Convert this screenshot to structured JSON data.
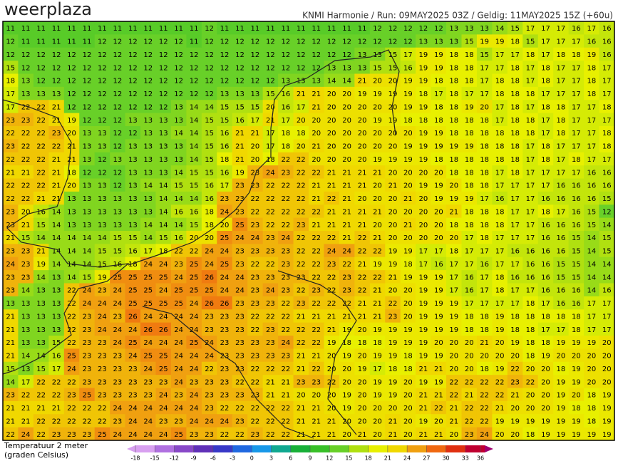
{
  "header": {
    "logo": "weerplaza",
    "info": "KNMI Harmonie / Run: 09MAY2025 03Z / Geldig: 11MAY2025 15Z (+60u)"
  },
  "map": {
    "values": [
      [
        11,
        11,
        11,
        11,
        11,
        11,
        11,
        11,
        11,
        11,
        11,
        11,
        11,
        12,
        11,
        11,
        11,
        11,
        11,
        11,
        11,
        11,
        11,
        11,
        12,
        12,
        12,
        12,
        12,
        13,
        13,
        13,
        14,
        15,
        17,
        17,
        17,
        16,
        17,
        16
      ],
      [
        12,
        11,
        11,
        11,
        11,
        11,
        12,
        12,
        12,
        12,
        12,
        12,
        11,
        12,
        12,
        12,
        12,
        12,
        12,
        12,
        12,
        12,
        12,
        12,
        12,
        12,
        12,
        13,
        13,
        13,
        15,
        19,
        19,
        18,
        15,
        17,
        17,
        17,
        16,
        16
      ],
      [
        12,
        12,
        12,
        12,
        12,
        12,
        12,
        12,
        12,
        12,
        12,
        12,
        12,
        12,
        12,
        12,
        12,
        12,
        12,
        12,
        12,
        12,
        12,
        13,
        13,
        15,
        17,
        19,
        19,
        18,
        18,
        15,
        17,
        17,
        18,
        17,
        18,
        18,
        19,
        16
      ],
      [
        15,
        12,
        12,
        12,
        12,
        12,
        12,
        12,
        12,
        12,
        12,
        12,
        12,
        12,
        12,
        12,
        12,
        12,
        12,
        12,
        12,
        13,
        13,
        13,
        15,
        15,
        16,
        19,
        19,
        18,
        18,
        17,
        17,
        18,
        17,
        18,
        17,
        17,
        18,
        17
      ],
      [
        18,
        13,
        12,
        12,
        12,
        12,
        12,
        12,
        12,
        12,
        12,
        12,
        12,
        12,
        12,
        12,
        12,
        12,
        13,
        13,
        13,
        14,
        14,
        21,
        20,
        20,
        19,
        19,
        18,
        18,
        18,
        17,
        18,
        18,
        17,
        18,
        17,
        17,
        18,
        17
      ],
      [
        17,
        13,
        13,
        13,
        12,
        12,
        12,
        12,
        12,
        12,
        12,
        12,
        12,
        12,
        13,
        13,
        13,
        15,
        16,
        21,
        21,
        20,
        20,
        19,
        19,
        19,
        19,
        18,
        17,
        18,
        17,
        17,
        18,
        18,
        18,
        17,
        17,
        17,
        18,
        17
      ],
      [
        17,
        22,
        22,
        21,
        12,
        12,
        12,
        12,
        12,
        12,
        12,
        13,
        14,
        14,
        15,
        15,
        15,
        20,
        16,
        17,
        21,
        20,
        20,
        20,
        20,
        20,
        19,
        19,
        18,
        18,
        19,
        20,
        17,
        18,
        17,
        18,
        18,
        17,
        17,
        18
      ],
      [
        23,
        23,
        22,
        21,
        19,
        12,
        12,
        12,
        13,
        13,
        13,
        13,
        14,
        15,
        15,
        16,
        17,
        21,
        17,
        20,
        20,
        20,
        20,
        20,
        19,
        19,
        18,
        18,
        18,
        18,
        18,
        18,
        17,
        18,
        18,
        17,
        18,
        17,
        17,
        17
      ],
      [
        22,
        22,
        22,
        23,
        20,
        13,
        13,
        12,
        12,
        13,
        13,
        14,
        14,
        15,
        16,
        21,
        21,
        17,
        18,
        18,
        20,
        20,
        20,
        20,
        20,
        20,
        20,
        19,
        19,
        18,
        18,
        18,
        18,
        18,
        18,
        17,
        18,
        17,
        17,
        18
      ],
      [
        23,
        22,
        22,
        22,
        21,
        13,
        13,
        12,
        13,
        13,
        13,
        13,
        14,
        15,
        16,
        21,
        20,
        17,
        18,
        20,
        21,
        20,
        20,
        20,
        20,
        20,
        19,
        19,
        19,
        19,
        19,
        18,
        18,
        18,
        17,
        18,
        17,
        17,
        17,
        18
      ],
      [
        22,
        22,
        22,
        21,
        21,
        13,
        12,
        13,
        13,
        13,
        13,
        13,
        14,
        15,
        18,
        21,
        20,
        18,
        22,
        22,
        20,
        20,
        20,
        20,
        19,
        19,
        19,
        19,
        18,
        18,
        18,
        18,
        18,
        18,
        17,
        18,
        17,
        18,
        17,
        17
      ],
      [
        21,
        21,
        22,
        21,
        18,
        12,
        12,
        12,
        13,
        13,
        13,
        14,
        15,
        15,
        16,
        19,
        23,
        24,
        23,
        22,
        22,
        21,
        21,
        21,
        21,
        20,
        20,
        20,
        20,
        18,
        18,
        18,
        17,
        18,
        17,
        17,
        17,
        17,
        16,
        16
      ],
      [
        22,
        22,
        22,
        21,
        20,
        13,
        13,
        12,
        13,
        14,
        14,
        15,
        15,
        16,
        17,
        23,
        23,
        22,
        22,
        22,
        21,
        21,
        21,
        21,
        20,
        21,
        20,
        19,
        19,
        20,
        18,
        18,
        17,
        17,
        17,
        17,
        16,
        16,
        16,
        16
      ],
      [
        22,
        22,
        21,
        21,
        13,
        13,
        13,
        13,
        13,
        13,
        14,
        14,
        14,
        16,
        23,
        23,
        22,
        22,
        22,
        22,
        21,
        22,
        21,
        20,
        20,
        20,
        21,
        20,
        19,
        19,
        19,
        17,
        16,
        17,
        17,
        16,
        16,
        16,
        16,
        15
      ],
      [
        23,
        20,
        16,
        14,
        13,
        13,
        13,
        13,
        13,
        13,
        14,
        16,
        16,
        18,
        24,
        23,
        22,
        22,
        22,
        22,
        22,
        21,
        21,
        21,
        21,
        20,
        20,
        20,
        20,
        21,
        18,
        18,
        18,
        17,
        17,
        18,
        17,
        16,
        15,
        12
      ],
      [
        23,
        21,
        15,
        14,
        13,
        13,
        13,
        13,
        13,
        14,
        14,
        14,
        15,
        18,
        20,
        25,
        23,
        22,
        22,
        23,
        21,
        21,
        21,
        21,
        20,
        20,
        21,
        20,
        20,
        18,
        18,
        18,
        18,
        17,
        17,
        16,
        16,
        16,
        15,
        14
      ],
      [
        21,
        15,
        14,
        14,
        14,
        14,
        14,
        15,
        15,
        14,
        15,
        16,
        20,
        20,
        25,
        24,
        24,
        23,
        24,
        22,
        22,
        22,
        21,
        22,
        21,
        20,
        20,
        20,
        20,
        20,
        17,
        18,
        17,
        17,
        17,
        16,
        16,
        15,
        14,
        15
      ],
      [
        23,
        23,
        21,
        14,
        14,
        14,
        15,
        15,
        16,
        17,
        18,
        22,
        22,
        24,
        24,
        23,
        23,
        23,
        23,
        22,
        22,
        24,
        24,
        22,
        22,
        19,
        19,
        17,
        17,
        18,
        17,
        17,
        17,
        16,
        16,
        16,
        16,
        15,
        14,
        15
      ],
      [
        24,
        23,
        19,
        14,
        14,
        14,
        15,
        16,
        18,
        24,
        24,
        23,
        25,
        24,
        25,
        23,
        22,
        22,
        23,
        22,
        22,
        23,
        22,
        21,
        19,
        19,
        18,
        17,
        16,
        17,
        17,
        16,
        17,
        17,
        16,
        16,
        15,
        15,
        14,
        14
      ],
      [
        23,
        23,
        14,
        13,
        14,
        15,
        19,
        25,
        25,
        25,
        25,
        24,
        25,
        26,
        24,
        24,
        23,
        23,
        23,
        23,
        22,
        22,
        23,
        22,
        22,
        21,
        19,
        19,
        19,
        17,
        16,
        17,
        18,
        16,
        16,
        16,
        15,
        15,
        14,
        14
      ],
      [
        23,
        14,
        13,
        13,
        22,
        24,
        23,
        24,
        25,
        25,
        24,
        25,
        25,
        25,
        24,
        24,
        23,
        24,
        23,
        22,
        23,
        22,
        23,
        22,
        21,
        20,
        20,
        19,
        19,
        17,
        16,
        17,
        18,
        17,
        17,
        16,
        16,
        16,
        14,
        16
      ],
      [
        13,
        13,
        13,
        13,
        22,
        24,
        24,
        24,
        25,
        25,
        25,
        25,
        24,
        26,
        26,
        23,
        23,
        23,
        22,
        23,
        22,
        22,
        22,
        21,
        21,
        22,
        20,
        19,
        19,
        19,
        17,
        17,
        17,
        17,
        18,
        17,
        16,
        16,
        17,
        17
      ],
      [
        21,
        13,
        13,
        13,
        22,
        23,
        24,
        23,
        26,
        24,
        24,
        24,
        24,
        23,
        23,
        23,
        22,
        22,
        22,
        21,
        21,
        21,
        21,
        21,
        21,
        23,
        20,
        19,
        19,
        19,
        18,
        18,
        19,
        18,
        18,
        18,
        18,
        18,
        17,
        17
      ],
      [
        21,
        13,
        13,
        13,
        22,
        23,
        24,
        24,
        24,
        26,
        26,
        24,
        24,
        23,
        23,
        23,
        22,
        23,
        22,
        22,
        22,
        21,
        19,
        20,
        19,
        19,
        19,
        19,
        19,
        19,
        18,
        18,
        19,
        18,
        18,
        17,
        17,
        18,
        17,
        17
      ],
      [
        21,
        13,
        13,
        15,
        22,
        23,
        23,
        24,
        25,
        24,
        24,
        24,
        25,
        24,
        23,
        23,
        23,
        23,
        24,
        22,
        22,
        19,
        18,
        18,
        18,
        19,
        19,
        19,
        20,
        20,
        20,
        21,
        20,
        19,
        18,
        18,
        19,
        19,
        19,
        20
      ],
      [
        21,
        14,
        14,
        16,
        25,
        23,
        23,
        23,
        24,
        25,
        25,
        24,
        24,
        24,
        23,
        23,
        23,
        23,
        23,
        21,
        21,
        20,
        19,
        20,
        19,
        19,
        18,
        19,
        19,
        20,
        20,
        20,
        20,
        20,
        18,
        19,
        20,
        20,
        20,
        20
      ],
      [
        15,
        13,
        15,
        17,
        24,
        23,
        23,
        23,
        23,
        24,
        25,
        24,
        24,
        22,
        23,
        23,
        22,
        22,
        22,
        21,
        22,
        20,
        20,
        19,
        17,
        18,
        18,
        21,
        21,
        20,
        20,
        18,
        19,
        22,
        20,
        20,
        18,
        19,
        20,
        20
      ],
      [
        14,
        17,
        22,
        22,
        22,
        23,
        23,
        23,
        23,
        23,
        23,
        24,
        23,
        23,
        23,
        22,
        22,
        21,
        21,
        23,
        23,
        22,
        20,
        20,
        19,
        19,
        20,
        19,
        19,
        22,
        22,
        22,
        22,
        23,
        22,
        20,
        19,
        19,
        20,
        20
      ],
      [
        23,
        22,
        22,
        22,
        23,
        25,
        23,
        23,
        23,
        23,
        24,
        23,
        24,
        23,
        23,
        23,
        23,
        21,
        21,
        20,
        20,
        20,
        19,
        20,
        19,
        19,
        20,
        21,
        21,
        22,
        21,
        22,
        22,
        21,
        20,
        20,
        19,
        20,
        18,
        19
      ],
      [
        21,
        21,
        21,
        21,
        22,
        22,
        22,
        24,
        24,
        24,
        24,
        24,
        24,
        23,
        22,
        22,
        22,
        22,
        22,
        21,
        21,
        20,
        19,
        20,
        20,
        20,
        20,
        21,
        22,
        21,
        22,
        22,
        21,
        20,
        20,
        20,
        19,
        18,
        18,
        19
      ],
      [
        21,
        21,
        22,
        22,
        22,
        22,
        22,
        23,
        24,
        24,
        23,
        23,
        24,
        24,
        24,
        23,
        22,
        22,
        22,
        21,
        21,
        21,
        20,
        20,
        20,
        21,
        20,
        19,
        20,
        21,
        22,
        22,
        19,
        19,
        19,
        19,
        19,
        19,
        18,
        19
      ],
      [
        22,
        24,
        22,
        23,
        23,
        23,
        25,
        24,
        24,
        24,
        24,
        25,
        23,
        23,
        22,
        22,
        23,
        22,
        22,
        21,
        21,
        21,
        20,
        21,
        20,
        21,
        20,
        21,
        21,
        20,
        23,
        24,
        20,
        20,
        18,
        19,
        19,
        19,
        19,
        19
      ]
    ]
  },
  "colorbar": {
    "ticks": [
      -18,
      -15,
      -12,
      -9,
      -6,
      -3,
      0,
      3,
      6,
      9,
      12,
      15,
      18,
      21,
      24,
      27,
      30,
      33,
      36
    ],
    "colors": [
      "#d8a0f0",
      "#b070e0",
      "#8848c8",
      "#6030b8",
      "#3838c8",
      "#2068e0",
      "#1898e8",
      "#10a890",
      "#18b038",
      "#38c028",
      "#68d028",
      "#b0e010",
      "#e8f000",
      "#f0d800",
      "#f0a010",
      "#f06810",
      "#e03010",
      "#c00030",
      "#a00070"
    ]
  },
  "footer": {
    "line1": "Temperatuur 2 meter",
    "line2": "(graden Celsius)"
  }
}
